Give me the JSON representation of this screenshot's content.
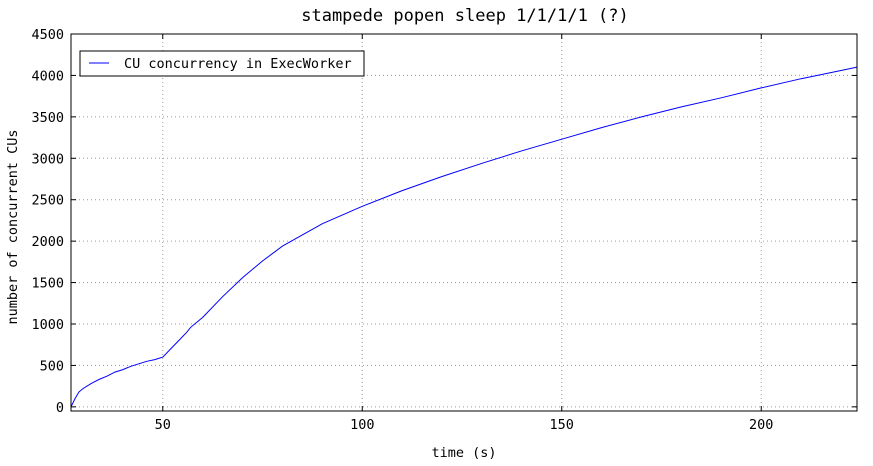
{
  "chart_data": {
    "type": "line",
    "title": "stampede popen sleep 1/1/1/1 (?)",
    "xlabel": "time (s)",
    "ylabel": "number of concurrent CUs",
    "xlim": [
      27,
      224
    ],
    "ylim": [
      -50,
      4500
    ],
    "x_ticks": [
      50,
      100,
      150,
      200
    ],
    "y_ticks": [
      0,
      500,
      1000,
      1500,
      2000,
      2500,
      3000,
      3500,
      4000,
      4500
    ],
    "grid": true,
    "legend_position": "top-left",
    "series": [
      {
        "name": "CU concurrency in ExecWorker",
        "color": "#0000ff",
        "x": [
          27,
          28,
          29,
          30,
          32,
          34,
          36,
          38,
          40,
          42,
          44,
          46,
          48,
          50,
          52,
          54,
          56,
          57,
          60,
          65,
          70,
          75,
          80,
          90,
          100,
          110,
          120,
          130,
          140,
          150,
          160,
          170,
          180,
          190,
          200,
          210,
          220,
          224
        ],
        "y": [
          0,
          100,
          180,
          220,
          280,
          330,
          370,
          420,
          450,
          490,
          520,
          550,
          570,
          600,
          700,
          800,
          900,
          960,
          1080,
          1330,
          1560,
          1760,
          1940,
          2210,
          2420,
          2610,
          2780,
          2940,
          3090,
          3230,
          3370,
          3500,
          3620,
          3730,
          3850,
          3960,
          4060,
          4100
        ]
      }
    ]
  }
}
